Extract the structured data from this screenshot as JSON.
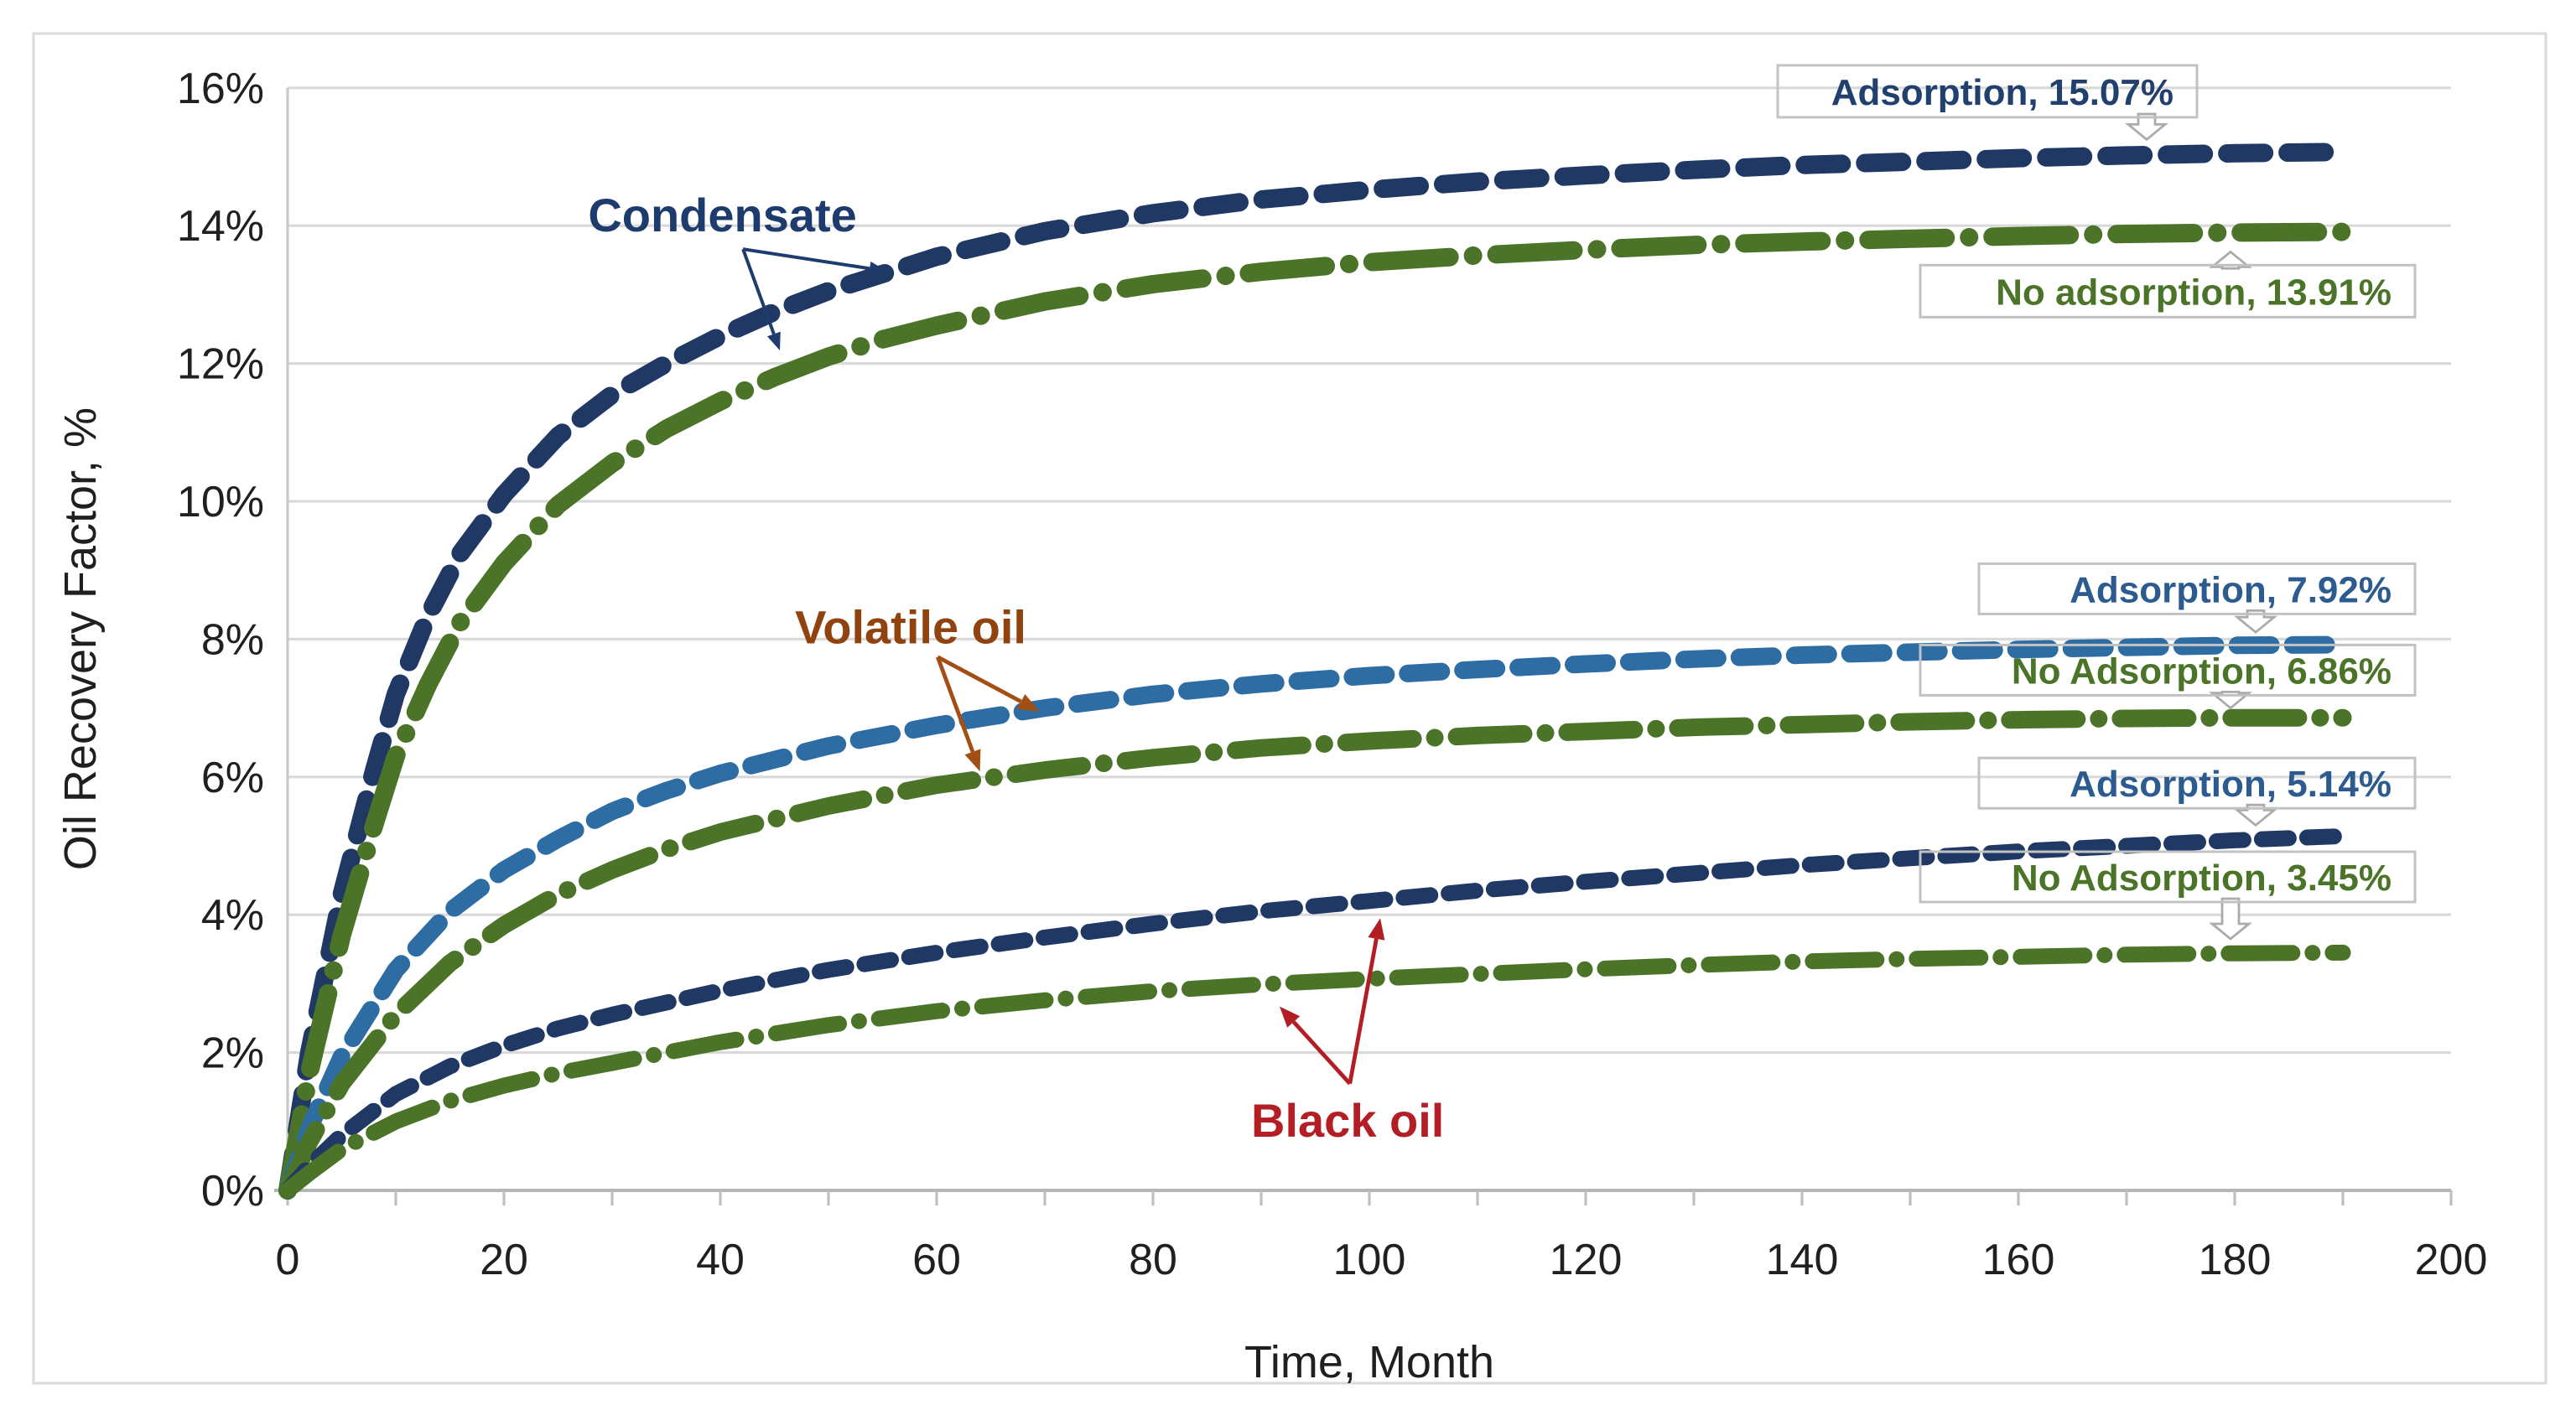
{
  "chart_data": {
    "type": "line",
    "title": "",
    "xlabel": "Time, Month",
    "ylabel": "Oil Recovery Factor, %",
    "xlim": [
      0,
      200
    ],
    "ylim_pct": [
      0,
      16
    ],
    "x_ticks": [
      0,
      20,
      40,
      60,
      80,
      100,
      120,
      140,
      160,
      180,
      200
    ],
    "x_minor_tick_step": 10,
    "y_ticks_pct": [
      0,
      2,
      4,
      6,
      8,
      10,
      12,
      14,
      16
    ],
    "y_tick_labels": [
      "0%",
      "2%",
      "4%",
      "6%",
      "8%",
      "10%",
      "12%",
      "14%",
      "16%"
    ],
    "grid": "horizontal",
    "legend": "none",
    "colors": {
      "navy": "#1F3864",
      "steel_blue": "#2E6DA4",
      "green": "#4B7428",
      "grid": "#D9D9D9",
      "axis": "#BFBFBF",
      "tick_text": "#202020",
      "callout_border": "#C2C2C2"
    },
    "series": [
      {
        "id": "condensate-adsorption",
        "fluid": "Condensate",
        "case": "Adsorption",
        "final_value_pct": 15.07,
        "color": "#1F3864",
        "dash": [
          22,
          14
        ],
        "width": 11,
        "points": [
          [
            0,
            0
          ],
          [
            2,
            2.0
          ],
          [
            5,
            4.3
          ],
          [
            8,
            6.1
          ],
          [
            10,
            7.2
          ],
          [
            13,
            8.35
          ],
          [
            16,
            9.25
          ],
          [
            20,
            10.1
          ],
          [
            25,
            10.95
          ],
          [
            30,
            11.55
          ],
          [
            35,
            12.0
          ],
          [
            40,
            12.4
          ],
          [
            45,
            12.75
          ],
          [
            50,
            13.05
          ],
          [
            55,
            13.3
          ],
          [
            60,
            13.55
          ],
          [
            70,
            13.92
          ],
          [
            80,
            14.18
          ],
          [
            90,
            14.38
          ],
          [
            100,
            14.52
          ],
          [
            110,
            14.64
          ],
          [
            120,
            14.73
          ],
          [
            130,
            14.81
          ],
          [
            140,
            14.88
          ],
          [
            150,
            14.93
          ],
          [
            160,
            14.98
          ],
          [
            170,
            15.02
          ],
          [
            180,
            15.05
          ],
          [
            190,
            15.07
          ]
        ]
      },
      {
        "id": "condensate-no-adsorption",
        "fluid": "Condensate",
        "case": "No adsorption",
        "final_value_pct": 13.91,
        "color": "#4B7428",
        "dash": [
          46,
          14,
          0.01,
          14
        ],
        "width": 11,
        "points": [
          [
            0,
            0
          ],
          [
            2,
            1.7
          ],
          [
            5,
            3.7
          ],
          [
            8,
            5.3
          ],
          [
            10,
            6.3
          ],
          [
            13,
            7.35
          ],
          [
            16,
            8.25
          ],
          [
            20,
            9.1
          ],
          [
            25,
            9.95
          ],
          [
            30,
            10.55
          ],
          [
            35,
            11.05
          ],
          [
            40,
            11.45
          ],
          [
            45,
            11.8
          ],
          [
            50,
            12.1
          ],
          [
            55,
            12.35
          ],
          [
            60,
            12.55
          ],
          [
            70,
            12.9
          ],
          [
            80,
            13.15
          ],
          [
            90,
            13.33
          ],
          [
            100,
            13.47
          ],
          [
            110,
            13.57
          ],
          [
            120,
            13.65
          ],
          [
            130,
            13.72
          ],
          [
            140,
            13.77
          ],
          [
            150,
            13.81
          ],
          [
            160,
            13.85
          ],
          [
            170,
            13.88
          ],
          [
            180,
            13.9
          ],
          [
            190,
            13.91
          ]
        ]
      },
      {
        "id": "volatile-adsorption",
        "fluid": "Volatile oil",
        "case": "Adsorption",
        "final_value_pct": 7.92,
        "color": "#2E6DA4",
        "dash": [
          20,
          13
        ],
        "width": 10.5,
        "points": [
          [
            0,
            0
          ],
          [
            2,
            0.9
          ],
          [
            5,
            1.95
          ],
          [
            10,
            3.2
          ],
          [
            15,
            4.05
          ],
          [
            20,
            4.65
          ],
          [
            25,
            5.1
          ],
          [
            30,
            5.5
          ],
          [
            35,
            5.8
          ],
          [
            40,
            6.05
          ],
          [
            50,
            6.45
          ],
          [
            60,
            6.75
          ],
          [
            70,
            7.0
          ],
          [
            80,
            7.2
          ],
          [
            90,
            7.35
          ],
          [
            100,
            7.47
          ],
          [
            110,
            7.56
          ],
          [
            120,
            7.64
          ],
          [
            130,
            7.71
          ],
          [
            140,
            7.77
          ],
          [
            150,
            7.81
          ],
          [
            160,
            7.85
          ],
          [
            170,
            7.88
          ],
          [
            180,
            7.91
          ],
          [
            190,
            7.92
          ]
        ]
      },
      {
        "id": "volatile-no-adsorption",
        "fluid": "Volatile oil",
        "case": "No Adsorption",
        "final_value_pct": 6.86,
        "color": "#4B7428",
        "dash": [
          40,
          13,
          0.01,
          13
        ],
        "width": 10.5,
        "points": [
          [
            0,
            0
          ],
          [
            2,
            0.7
          ],
          [
            5,
            1.55
          ],
          [
            10,
            2.55
          ],
          [
            15,
            3.3
          ],
          [
            20,
            3.85
          ],
          [
            25,
            4.3
          ],
          [
            30,
            4.65
          ],
          [
            35,
            4.95
          ],
          [
            40,
            5.2
          ],
          [
            50,
            5.58
          ],
          [
            60,
            5.88
          ],
          [
            70,
            6.1
          ],
          [
            80,
            6.28
          ],
          [
            90,
            6.42
          ],
          [
            100,
            6.52
          ],
          [
            110,
            6.6
          ],
          [
            120,
            6.66
          ],
          [
            130,
            6.72
          ],
          [
            140,
            6.76
          ],
          [
            150,
            6.8
          ],
          [
            160,
            6.83
          ],
          [
            170,
            6.85
          ],
          [
            180,
            6.86
          ],
          [
            190,
            6.86
          ]
        ]
      },
      {
        "id": "black-oil-adsorption",
        "fluid": "Black oil",
        "case": "Adsorption",
        "final_value_pct": 5.14,
        "color": "#1F3864",
        "dash": [
          16,
          11
        ],
        "width": 9.5,
        "points": [
          [
            0,
            0
          ],
          [
            2,
            0.35
          ],
          [
            5,
            0.8
          ],
          [
            10,
            1.4
          ],
          [
            15,
            1.8
          ],
          [
            20,
            2.1
          ],
          [
            25,
            2.35
          ],
          [
            30,
            2.55
          ],
          [
            40,
            2.9
          ],
          [
            50,
            3.2
          ],
          [
            60,
            3.45
          ],
          [
            70,
            3.67
          ],
          [
            80,
            3.87
          ],
          [
            90,
            4.05
          ],
          [
            100,
            4.2
          ],
          [
            110,
            4.35
          ],
          [
            120,
            4.48
          ],
          [
            130,
            4.6
          ],
          [
            140,
            4.72
          ],
          [
            150,
            4.82
          ],
          [
            160,
            4.92
          ],
          [
            170,
            5.0
          ],
          [
            180,
            5.08
          ],
          [
            190,
            5.14
          ]
        ]
      },
      {
        "id": "black-oil-no-adsorption",
        "fluid": "Black oil",
        "case": "No Adsorption",
        "final_value_pct": 3.45,
        "color": "#4B7428",
        "dash": [
          38,
          12,
          0.01,
          12
        ],
        "width": 9.5,
        "points": [
          [
            0,
            0
          ],
          [
            2,
            0.25
          ],
          [
            5,
            0.6
          ],
          [
            10,
            1.0
          ],
          [
            15,
            1.3
          ],
          [
            20,
            1.52
          ],
          [
            25,
            1.7
          ],
          [
            30,
            1.85
          ],
          [
            40,
            2.15
          ],
          [
            50,
            2.4
          ],
          [
            60,
            2.6
          ],
          [
            70,
            2.76
          ],
          [
            80,
            2.89
          ],
          [
            90,
            2.99
          ],
          [
            100,
            3.07
          ],
          [
            110,
            3.14
          ],
          [
            120,
            3.21
          ],
          [
            130,
            3.27
          ],
          [
            140,
            3.32
          ],
          [
            150,
            3.36
          ],
          [
            160,
            3.39
          ],
          [
            170,
            3.42
          ],
          [
            180,
            3.44
          ],
          [
            190,
            3.45
          ]
        ]
      }
    ],
    "fluid_labels": [
      {
        "id": "condensate",
        "text": "Condensate",
        "color": "#1E3B6E",
        "x_month": 40.2,
        "y_pct": 14.16,
        "arrow_color": "#1E3B6E",
        "arrow_width": 2,
        "arrows": [
          {
            "from": [
              42.1,
              13.66
            ],
            "to": [
              55.4,
              13.34
            ]
          },
          {
            "from": [
              42.1,
              13.66
            ],
            "to": [
              45.5,
              12.19
            ]
          }
        ]
      },
      {
        "id": "volatile-oil",
        "text": "Volatile oil",
        "color": "#91430F",
        "x_month": 57.6,
        "y_pct": 8.18,
        "arrow_color": "#A34F14",
        "arrow_width": 2.4,
        "arrows": [
          {
            "from": [
              60.1,
              7.74
            ],
            "to": [
              69.5,
              6.95
            ]
          },
          {
            "from": [
              60.1,
              7.74
            ],
            "to": [
              64.0,
              6.08
            ]
          }
        ]
      },
      {
        "id": "black-oil",
        "text": "Black oil",
        "color": "#B21E24",
        "x_month": 98.0,
        "y_pct": 1.02,
        "arrow_color": "#B21E24",
        "arrow_width": 2.4,
        "arrows": [
          {
            "from": [
              98.2,
              1.55
            ],
            "to": [
              91.7,
              2.67
            ]
          },
          {
            "from": [
              98.2,
              1.55
            ],
            "to": [
              101.0,
              3.95
            ]
          }
        ]
      }
    ],
    "callouts": [
      {
        "id": "condensate-adsorption-value",
        "text": "Adsorption, 15.07%",
        "color": "#21406D",
        "cy_pct": 15.95,
        "x_left": 1060,
        "x_right": 1310,
        "h": 31,
        "pointer": {
          "dir": "down",
          "px": 1280,
          "tip_pct": 15.25
        }
      },
      {
        "id": "condensate-no-adsorption-value",
        "text": "No adsorption, 13.91%",
        "color": "#4B7428",
        "cy_pct": 13.05,
        "x_left": 1145,
        "x_right": 1440,
        "h": 31,
        "pointer": {
          "dir": "up",
          "px": 1330,
          "tip_pct": 13.62
        }
      },
      {
        "id": "volatile-adsorption-value",
        "text": "Adsorption, 7.92%",
        "color": "#2B5B8F",
        "cy_pct": 8.73,
        "x_left": 1180,
        "x_right": 1440,
        "h": 30,
        "pointer": {
          "dir": "down",
          "px": 1345,
          "tip_pct": 8.1
        }
      },
      {
        "id": "volatile-no-adsorption-value",
        "text": "No Adsorption, 6.86%",
        "color": "#4B7428",
        "cy_pct": 7.55,
        "x_left": 1145,
        "x_right": 1440,
        "h": 30,
        "pointer": {
          "dir": "down",
          "px": 1330,
          "tip_pct": 7.0
        }
      },
      {
        "id": "black-oil-adsorption-value",
        "text": "Adsorption, 5.14%",
        "color": "#2B5B8F",
        "cy_pct": 5.91,
        "x_left": 1180,
        "x_right": 1440,
        "h": 30,
        "pointer": {
          "dir": "down",
          "px": 1345,
          "tip_pct": 5.3
        }
      },
      {
        "id": "black-oil-no-adsorption-value",
        "text": "No Adsorption, 3.45%",
        "color": "#4B7428",
        "cy_pct": 4.55,
        "x_left": 1145,
        "x_right": 1440,
        "h": 30,
        "pointer": {
          "dir": "down",
          "px": 1330,
          "tip_pct": 3.65
        }
      }
    ]
  }
}
